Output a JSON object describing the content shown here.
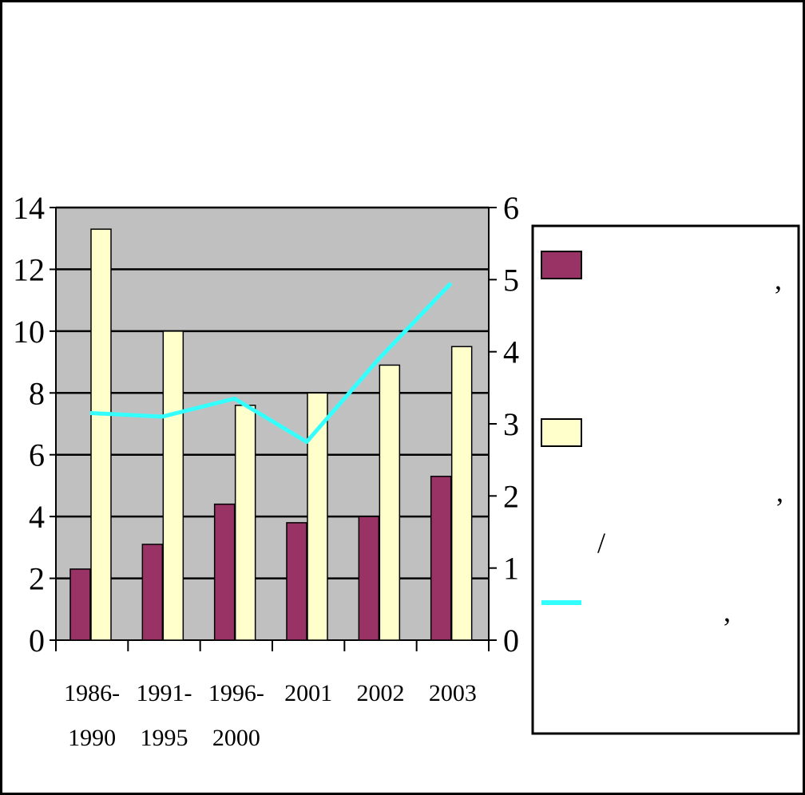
{
  "colors": {
    "plot_background": "#c0c0c0",
    "series_1": "#993366",
    "series_2": "#ffffcc",
    "series_3": "#33ffff",
    "border": "#000000"
  },
  "legend": {
    "items": [
      {
        "swatch": "bar",
        "color": "#993366",
        "lines": [
          ",",
          ""
        ]
      },
      {
        "swatch": "bar",
        "color": "#ffffcc",
        "lines": [
          ",",
          "/"
        ]
      },
      {
        "swatch": "line",
        "color": "#33ffff",
        "lines": [
          ","
        ]
      }
    ]
  },
  "chart_data": {
    "type": "bar",
    "categories": [
      [
        "1986-",
        "1990"
      ],
      [
        "1991-",
        "1995"
      ],
      [
        "1996-",
        "2000"
      ],
      [
        "2001"
      ],
      [
        "2002"
      ],
      [
        "2003"
      ]
    ],
    "series": [
      {
        "type": "bar",
        "axis": "left",
        "color": "#993366",
        "values": [
          2.3,
          3.1,
          4.4,
          3.8,
          4.0,
          5.3
        ]
      },
      {
        "type": "bar",
        "axis": "left",
        "color": "#ffffcc",
        "values": [
          13.3,
          10.0,
          7.6,
          8.0,
          8.9,
          9.5
        ]
      },
      {
        "type": "line",
        "axis": "right",
        "color": "#33ffff",
        "values": [
          3.15,
          3.1,
          3.35,
          2.75,
          3.9,
          4.95
        ]
      }
    ],
    "y_left": {
      "min": 0,
      "max": 14,
      "ticks": [
        0,
        2,
        4,
        6,
        8,
        10,
        12,
        14
      ]
    },
    "y_right": {
      "min": 0,
      "max": 6,
      "ticks": [
        0,
        1,
        2,
        3,
        4,
        5,
        6
      ]
    },
    "grid": true,
    "legend_position": "right"
  }
}
